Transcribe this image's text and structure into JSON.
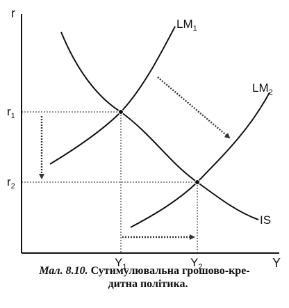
{
  "axes": {
    "y_label": "r",
    "x_label": "Y"
  },
  "curves": {
    "lm1": {
      "base": "LM",
      "sub": "1"
    },
    "lm2": {
      "base": "LM",
      "sub": "2"
    },
    "is": {
      "base": "IS"
    }
  },
  "ticks": {
    "r1": {
      "base": "r",
      "sub": "1"
    },
    "r2": {
      "base": "r",
      "sub": "2"
    },
    "y1": {
      "base": "Y",
      "sub": "1"
    },
    "y2": {
      "base": "Y",
      "sub": "2"
    }
  },
  "caption": {
    "label": "Мал. 8.10.",
    "line1": "Сутимулювальна грошово-кре-",
    "line2": "дитна політика."
  }
}
